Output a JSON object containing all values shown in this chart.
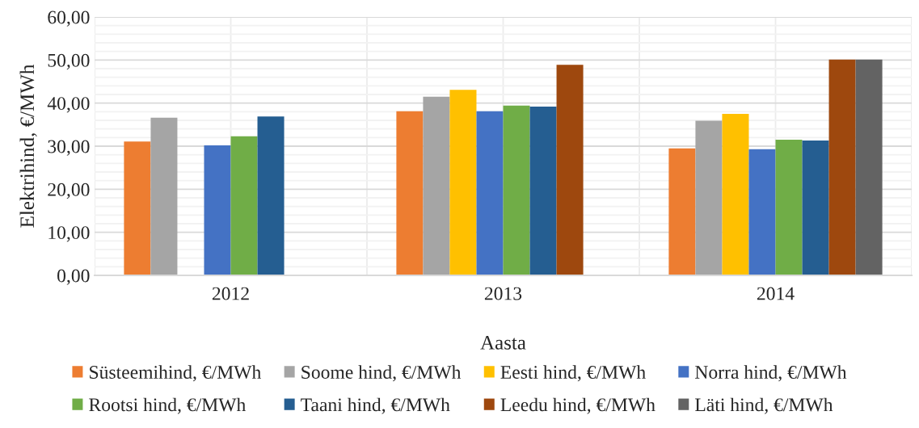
{
  "chart_data": {
    "type": "bar",
    "xlabel": "Aasta",
    "ylabel": "Elektrihind, €/MWh",
    "categories": [
      "2012",
      "2013",
      "2014"
    ],
    "series": [
      {
        "name": "Süsteemihind, €/MWh",
        "color": "#ed7d31",
        "values": [
          31.1,
          38.1,
          29.5
        ]
      },
      {
        "name": "Soome hind, €/MWh",
        "color": "#a5a5a5",
        "values": [
          36.6,
          41.5,
          35.9
        ]
      },
      {
        "name": "Eesti hind, €/MWh",
        "color": "#ffc000",
        "values": [
          null,
          43.1,
          37.5
        ]
      },
      {
        "name": "Norra hind, €/MWh",
        "color": "#4472c4",
        "values": [
          30.2,
          38.1,
          29.3
        ]
      },
      {
        "name": "Rootsi hind, €/MWh",
        "color": "#70ad47",
        "values": [
          32.3,
          39.4,
          31.5
        ]
      },
      {
        "name": "Taani hind, €/MWh",
        "color": "#255e91",
        "values": [
          36.9,
          39.2,
          31.3
        ]
      },
      {
        "name": "Leedu hind, €/MWh",
        "color": "#9e480e",
        "values": [
          null,
          48.9,
          50.1
        ]
      },
      {
        "name": "Läti hind, €/MWh",
        "color": "#636363",
        "values": [
          null,
          null,
          50.1
        ]
      }
    ],
    "ylim": [
      0,
      60
    ],
    "yticks": [
      {
        "value": 0,
        "label": "0,00"
      },
      {
        "value": 2,
        "label": null
      },
      {
        "value": 4,
        "label": null
      },
      {
        "value": 6,
        "label": null
      },
      {
        "value": 8,
        "label": null
      },
      {
        "value": 10,
        "label": "10,00"
      },
      {
        "value": 12,
        "label": null
      },
      {
        "value": 14,
        "label": null
      },
      {
        "value": 16,
        "label": null
      },
      {
        "value": 18,
        "label": null
      },
      {
        "value": 20,
        "label": "20,00"
      },
      {
        "value": 22,
        "label": null
      },
      {
        "value": 24,
        "label": null
      },
      {
        "value": 26,
        "label": null
      },
      {
        "value": 28,
        "label": null
      },
      {
        "value": 30,
        "label": "30,00"
      },
      {
        "value": 32,
        "label": null
      },
      {
        "value": 34,
        "label": null
      },
      {
        "value": 36,
        "label": null
      },
      {
        "value": 38,
        "label": null
      },
      {
        "value": 40,
        "label": "40,00"
      },
      {
        "value": 42,
        "label": null
      },
      {
        "value": 44,
        "label": null
      },
      {
        "value": 46,
        "label": null
      },
      {
        "value": 48,
        "label": null
      },
      {
        "value": 50,
        "label": "50,00"
      },
      {
        "value": 52,
        "label": null
      },
      {
        "value": 54,
        "label": null
      },
      {
        "value": 56,
        "label": null
      },
      {
        "value": 58,
        "label": null
      },
      {
        "value": 60,
        "label": "60,00"
      }
    ],
    "grid": true,
    "legend": "bottom"
  }
}
